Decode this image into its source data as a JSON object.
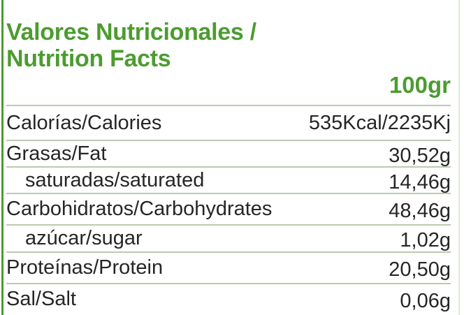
{
  "header": {
    "title_line1": "Valores Nutricionales /",
    "title_line2": "Nutrition Facts",
    "serving_size": "100gr"
  },
  "table": {
    "rows": [
      {
        "label": "Calorías/Calories",
        "value": "535Kcal/2235Kj",
        "indent": false
      },
      {
        "label": "Grasas/Fat",
        "value": "30,52g",
        "indent": false
      },
      {
        "label": "saturadas/saturated",
        "value": "14,46g",
        "indent": true
      },
      {
        "label": "Carbohidratos/Carbohydrates",
        "value": "48,46g",
        "indent": false
      },
      {
        "label": "azúcar/sugar",
        "value": "1,02g",
        "indent": true
      },
      {
        "label": "Proteínas/Protein",
        "value": "20,50g",
        "indent": false
      },
      {
        "label": "Sal/Salt",
        "value": "0,06g",
        "indent": false
      }
    ]
  },
  "colors": {
    "accent_green": "#4c9c30",
    "divider": "#b9cbae",
    "text": "#262626",
    "edge_right_faint": "#dcead4"
  }
}
